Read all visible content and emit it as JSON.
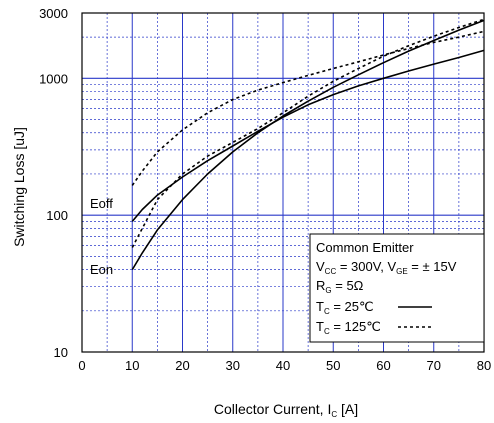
{
  "chart_data": {
    "type": "line",
    "xlabel": "Collector Current, I",
    "xlabel_sub": "C",
    "xlabel_unit": " [A]",
    "ylabel": "Switching Loss [uJ]",
    "xlim": [
      0,
      80
    ],
    "ylim": [
      10,
      3000
    ],
    "yscale": "log",
    "grid": true,
    "x_ticks": [
      0,
      10,
      20,
      30,
      40,
      50,
      60,
      70,
      80
    ],
    "y_ticks": [
      10,
      100,
      1000,
      3000
    ],
    "y_tick_labels": [
      "10",
      "100",
      "1000",
      "3000"
    ],
    "annotations": [
      "Eoff",
      "Eon"
    ],
    "legend": {
      "placement": "bottom-right",
      "title": "Common Emitter",
      "line1": {
        "v": "V",
        "vsub": "CC",
        "mid": " = 300V, V",
        "vsub2": "GE",
        "end": " = ± 15V"
      },
      "line2": {
        "v": "R",
        "vsub": "G",
        "end": " = 5Ω"
      },
      "entries": [
        {
          "t": "T",
          "tsub": "C",
          "label": " =   25℃",
          "style": "solid"
        },
        {
          "t": "T",
          "tsub": "C",
          "label": " = 125℃",
          "style": "dotted"
        }
      ]
    },
    "series": [
      {
        "style": "solid",
        "x": [
          10,
          12,
          15,
          20,
          25,
          30,
          35,
          40,
          45,
          50,
          55,
          60,
          65,
          70,
          75,
          80
        ],
        "y": [
          90,
          110,
          140,
          190,
          250,
          320,
          410,
          520,
          640,
          760,
          880,
          1000,
          1130,
          1270,
          1420,
          1600
        ]
      },
      {
        "style": "solid",
        "x": [
          10,
          12,
          15,
          20,
          25,
          30,
          35,
          40,
          45,
          50,
          55,
          60,
          65,
          70,
          75,
          80
        ],
        "y": [
          40,
          53,
          78,
          130,
          200,
          290,
          400,
          530,
          680,
          860,
          1060,
          1300,
          1580,
          1890,
          2250,
          2650
        ]
      },
      {
        "style": "dotted",
        "x": [
          10,
          12,
          15,
          20,
          25,
          30,
          35,
          40,
          45,
          50,
          55,
          60,
          65,
          70,
          75,
          80
        ],
        "y": [
          165,
          210,
          290,
          420,
          560,
          700,
          820,
          930,
          1050,
          1180,
          1320,
          1480,
          1650,
          1830,
          2000,
          2200
        ]
      },
      {
        "style": "dotted",
        "x": [
          10,
          12,
          15,
          20,
          25,
          30,
          35,
          40,
          45,
          50,
          55,
          60,
          65,
          70,
          75,
          80
        ],
        "y": [
          58,
          80,
          130,
          200,
          270,
          340,
          430,
          560,
          740,
          950,
          1180,
          1450,
          1730,
          2030,
          2350,
          2700
        ]
      }
    ]
  }
}
